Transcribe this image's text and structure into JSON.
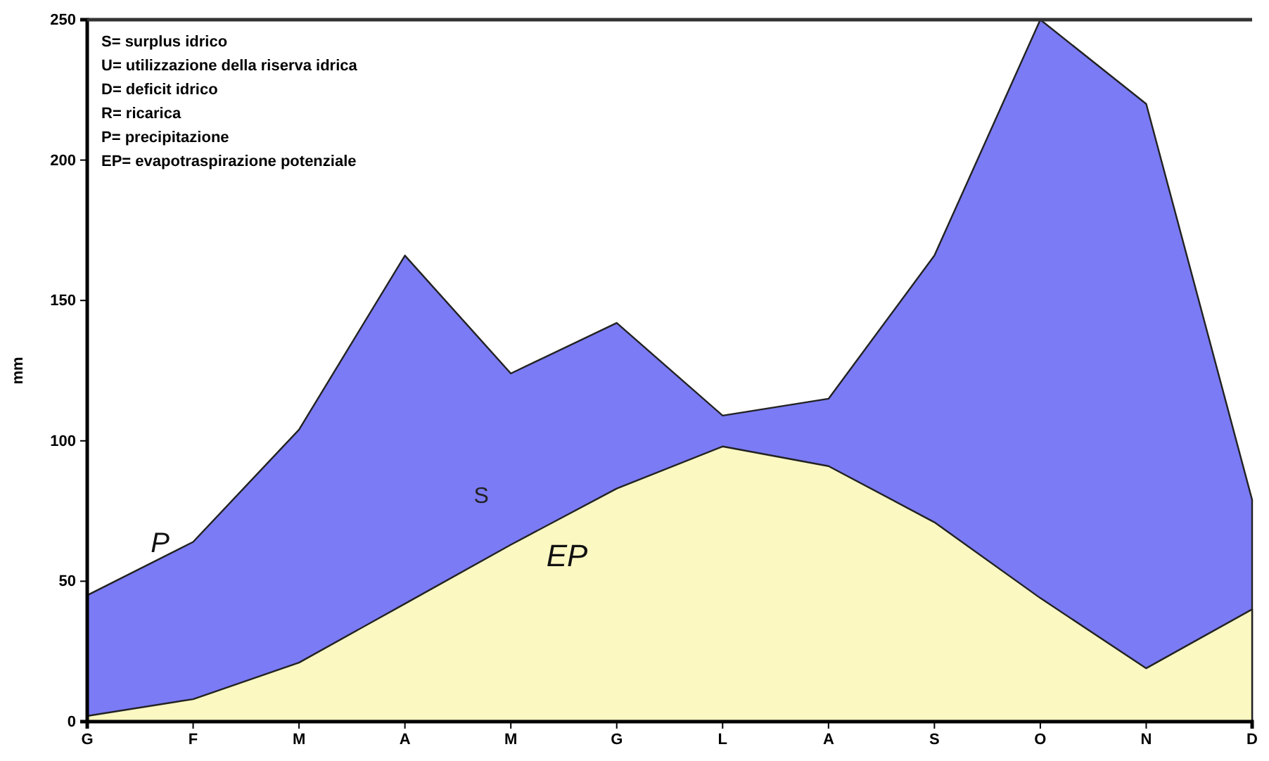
{
  "chart_data": {
    "type": "area",
    "ylabel": "mm",
    "categories": [
      "G",
      "F",
      "M",
      "A",
      "M",
      "G",
      "L",
      "A",
      "S",
      "O",
      "N",
      "D"
    ],
    "series": [
      {
        "name": "P",
        "color": "#7b7bf5",
        "values": [
          45,
          64,
          104,
          166,
          124,
          142,
          109,
          115,
          166,
          250,
          220,
          79
        ]
      },
      {
        "name": "EP",
        "color": "#fbf8c2",
        "values": [
          2,
          8,
          21,
          42,
          63,
          83,
          98,
          91,
          71,
          44,
          19,
          40
        ]
      }
    ],
    "ylim": [
      0,
      250
    ],
    "yticks": [
      0,
      50,
      100,
      150,
      200,
      250
    ],
    "grid": false,
    "annotations": [
      "S= surplus idrico",
      "U= utilizzazione della riserva idrica",
      "D= deficit idrico",
      "R= ricarica",
      "P= precipitazione",
      "EP= evapotraspirazione potenziale",
      "S"
    ]
  }
}
